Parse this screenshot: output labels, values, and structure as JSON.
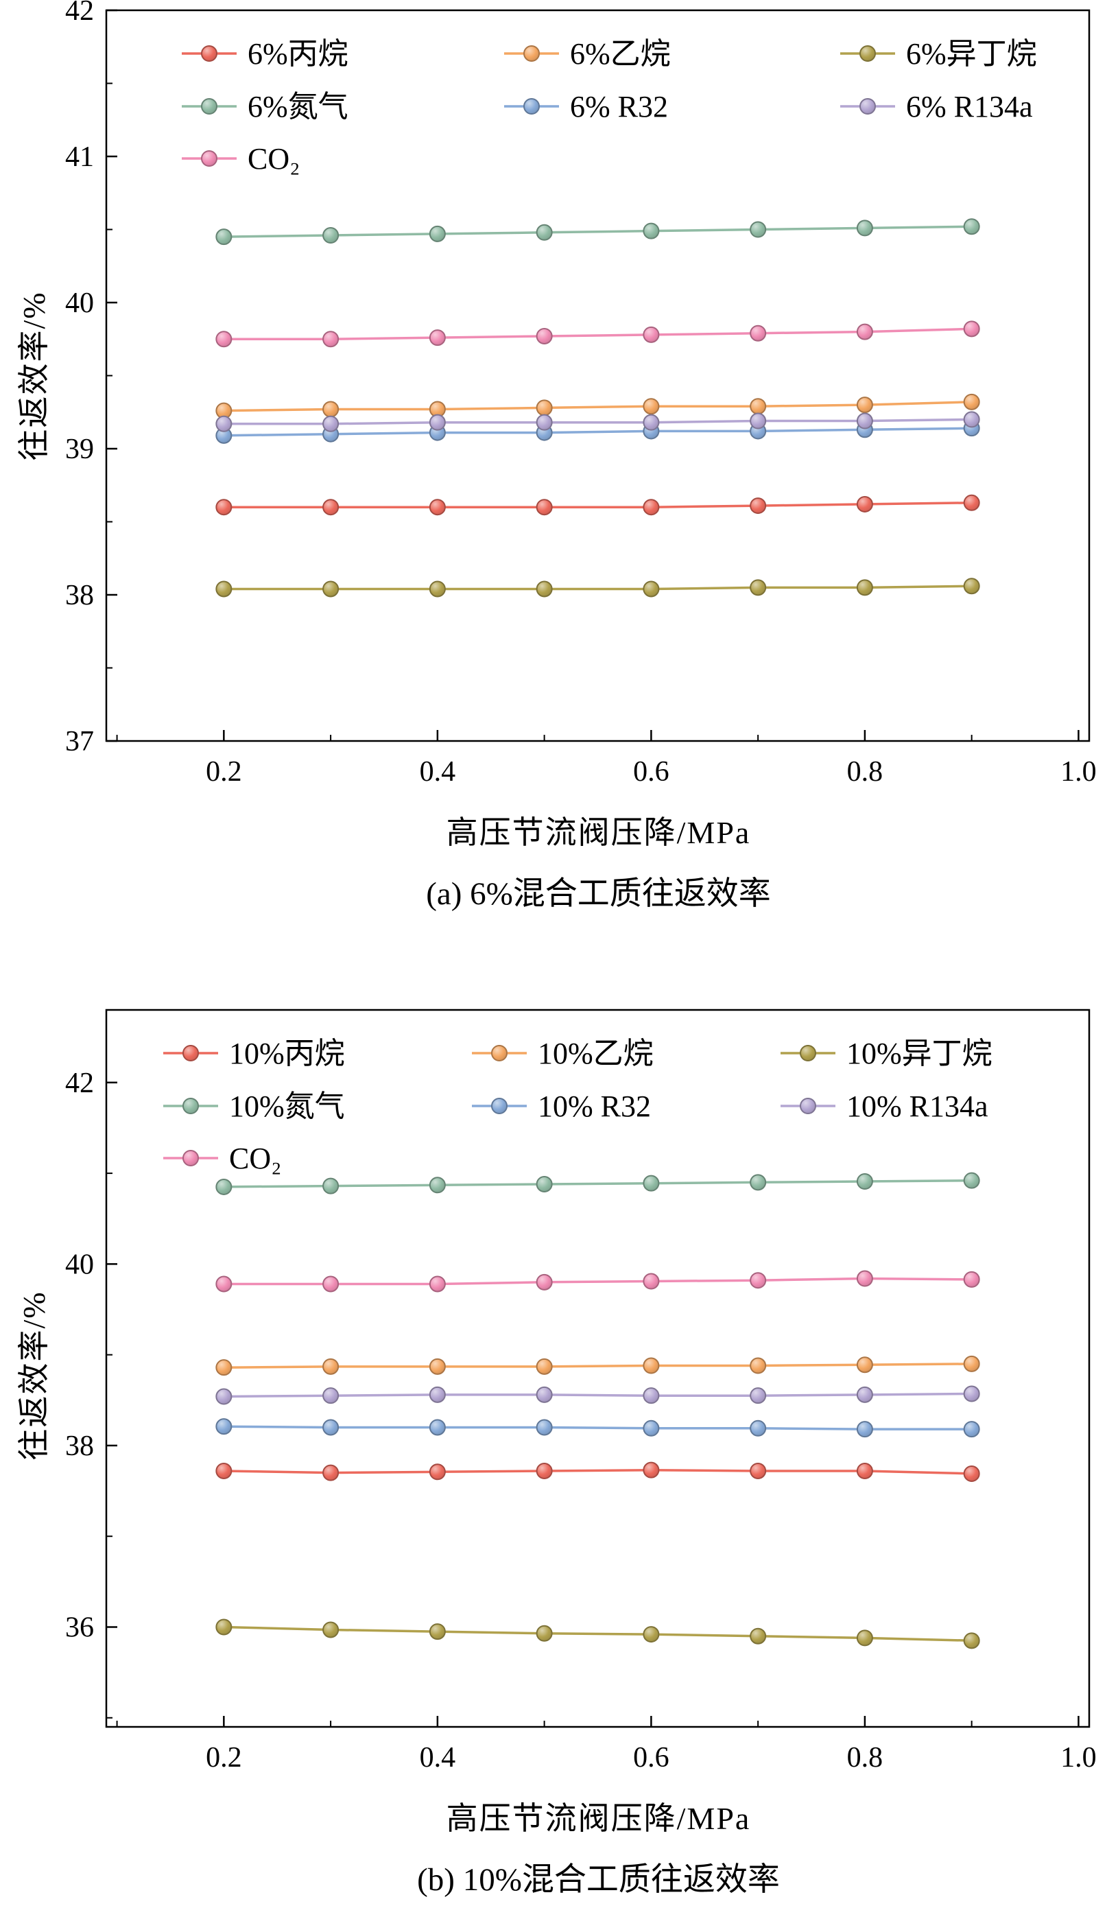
{
  "page": {
    "background": "#ffffff",
    "axis_color": "#000000"
  },
  "chart_data": [
    {
      "type": "line",
      "caption": "(a) 6%混合工质往返效率",
      "xlabel": "高压节流阀压降/MPa",
      "ylabel": "往返效率/%",
      "xlim": [
        0.09,
        1.01
      ],
      "ylim": [
        37,
        42
      ],
      "xticks": [
        0.2,
        0.4,
        0.6,
        0.8,
        1.0
      ],
      "yticks": [
        37,
        38,
        39,
        40,
        41,
        42
      ],
      "xminor": 0.1,
      "yminor": 0.5,
      "legend_position": "top-left-inside",
      "grid": false,
      "x": [
        0.2,
        0.3,
        0.4,
        0.5,
        0.6,
        0.7,
        0.8,
        0.9
      ],
      "series": [
        {
          "name": "6%丙烷",
          "color": "#ec6a5d",
          "values": [
            38.6,
            38.6,
            38.6,
            38.6,
            38.6,
            38.61,
            38.62,
            38.63
          ]
        },
        {
          "name": "6%乙烷",
          "color": "#f4a762",
          "values": [
            39.26,
            39.27,
            39.27,
            39.28,
            39.29,
            39.29,
            39.3,
            39.32
          ]
        },
        {
          "name": "6%异丁烷",
          "color": "#b1a14d",
          "values": [
            38.04,
            38.04,
            38.04,
            38.04,
            38.04,
            38.05,
            38.05,
            38.06
          ]
        },
        {
          "name": "6%氮气",
          "color": "#90bba4",
          "values": [
            40.45,
            40.46,
            40.47,
            40.48,
            40.49,
            40.5,
            40.51,
            40.52
          ]
        },
        {
          "name": "6% R32",
          "color": "#87aad8",
          "values": [
            39.09,
            39.1,
            39.11,
            39.11,
            39.12,
            39.12,
            39.13,
            39.14
          ]
        },
        {
          "name": "6% R134a",
          "color": "#b4a6d2",
          "values": [
            39.17,
            39.17,
            39.18,
            39.18,
            39.18,
            39.19,
            39.19,
            39.2
          ]
        },
        {
          "name": "CO₂",
          "color": "#f08cb4",
          "values": [
            39.75,
            39.75,
            39.76,
            39.77,
            39.78,
            39.79,
            39.8,
            39.82
          ]
        }
      ]
    },
    {
      "type": "line",
      "caption": "(b) 10%混合工质往返效率",
      "xlabel": "高压节流阀压降/MPa",
      "ylabel": "往返效率/%",
      "xlim": [
        0.09,
        1.01
      ],
      "ylim": [
        34.9,
        42.8
      ],
      "xticks": [
        0.2,
        0.4,
        0.6,
        0.8,
        1.0
      ],
      "yticks": [
        36,
        38,
        40,
        42
      ],
      "xminor": 0.1,
      "yminor": 1,
      "legend_position": "top-left-inside",
      "grid": false,
      "x": [
        0.2,
        0.3,
        0.4,
        0.5,
        0.6,
        0.7,
        0.8,
        0.9
      ],
      "series": [
        {
          "name": "10%丙烷",
          "color": "#ec6a5d",
          "values": [
            37.72,
            37.7,
            37.71,
            37.72,
            37.73,
            37.72,
            37.72,
            37.69
          ]
        },
        {
          "name": "10%乙烷",
          "color": "#f4a762",
          "values": [
            38.86,
            38.87,
            38.87,
            38.87,
            38.88,
            38.88,
            38.89,
            38.9
          ]
        },
        {
          "name": "10%异丁烷",
          "color": "#b1a14d",
          "values": [
            36.0,
            35.97,
            35.95,
            35.93,
            35.92,
            35.9,
            35.88,
            35.85
          ]
        },
        {
          "name": "10%氮气",
          "color": "#90bba4",
          "values": [
            40.85,
            40.86,
            40.87,
            40.88,
            40.89,
            40.9,
            40.91,
            40.92
          ]
        },
        {
          "name": "10% R32",
          "color": "#87aad8",
          "values": [
            38.21,
            38.2,
            38.2,
            38.2,
            38.19,
            38.19,
            38.18,
            38.18
          ]
        },
        {
          "name": "10% R134a",
          "color": "#b4a6d2",
          "values": [
            38.54,
            38.55,
            38.56,
            38.56,
            38.55,
            38.55,
            38.56,
            38.57
          ]
        },
        {
          "name": "CO₂",
          "color": "#f08cb4",
          "values": [
            39.78,
            39.78,
            39.78,
            39.8,
            39.81,
            39.82,
            39.84,
            39.83
          ]
        }
      ]
    }
  ]
}
